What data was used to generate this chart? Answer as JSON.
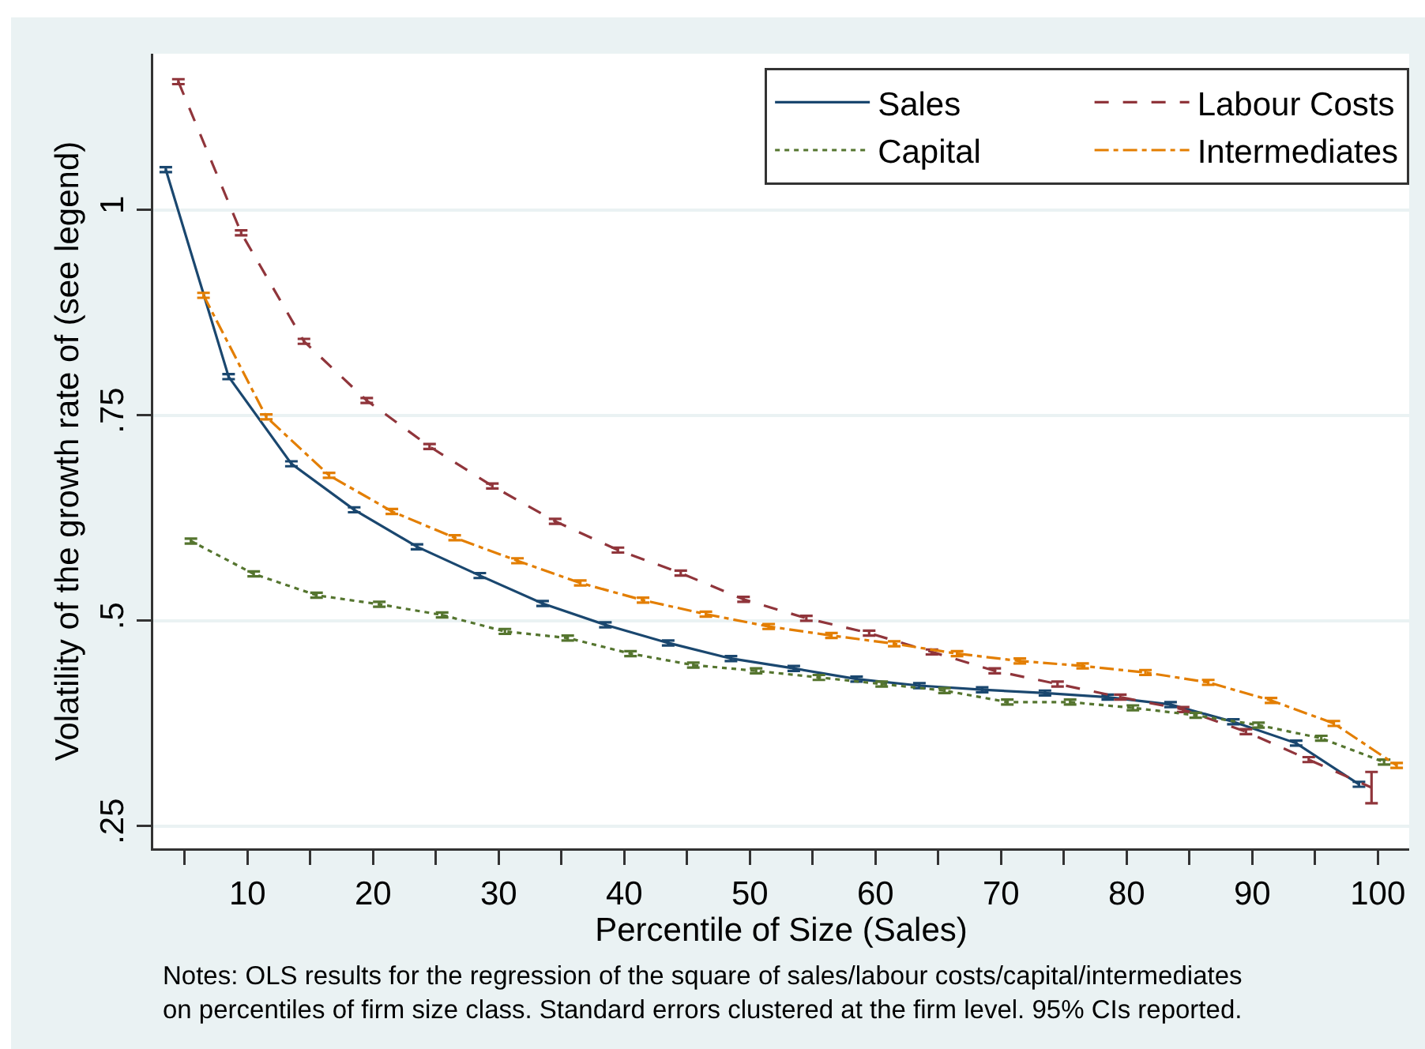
{
  "chart_data": {
    "type": "line",
    "xlabel": "Percentile of Size (Sales)",
    "ylabel": "Volatility of the growth rate of (see legend)",
    "annotations": [
      "Notes: OLS results for the regression of the square of sales/labour costs/capital/intermediates\non percentiles of firm size class. Standard errors clustered at the firm level. 95% CIs reported."
    ],
    "xlim": [
      2.5,
      102.5
    ],
    "ylim": [
      0.223,
      1.19
    ],
    "xticks": [
      {
        "value": 5,
        "label": null
      },
      10,
      {
        "value": 15,
        "label": null
      },
      20,
      {
        "value": 25,
        "label": null
      },
      30,
      {
        "value": 35,
        "label": null
      },
      40,
      {
        "value": 45,
        "label": null
      },
      50,
      {
        "value": 55,
        "label": null
      },
      60,
      {
        "value": 65,
        "label": null
      },
      70,
      {
        "value": 75,
        "label": null
      },
      80,
      {
        "value": 85,
        "label": null
      },
      90,
      {
        "value": 95,
        "label": null
      },
      100
    ],
    "yticks": [
      {
        "value": 0.25,
        "label": ".25"
      },
      {
        "value": 0.5,
        "label": ".5"
      },
      {
        "value": 0.75,
        "label": ".75"
      },
      1
    ],
    "grid": "y",
    "legend": "top right",
    "marker": "none",
    "series": [
      {
        "name": "Sales",
        "color": "#1a476f",
        "line_style": "solid",
        "x": [
          3.5,
          8.5,
          13.5,
          18.5,
          23.5,
          28.5,
          33.5,
          38.5,
          43.5,
          48.5,
          53.5,
          58.5,
          63.5,
          68.5,
          73.5,
          78.5,
          83.5,
          88.5,
          93.5,
          98.5
        ],
        "values": [
          1.049,
          0.797,
          0.691,
          0.635,
          0.59,
          0.555,
          0.521,
          0.495,
          0.473,
          0.454,
          0.442,
          0.429,
          0.421,
          0.416,
          0.412,
          0.407,
          0.398,
          0.377,
          0.351,
          0.301
        ],
        "errors": [
          0.003,
          0.003,
          0.003,
          0.003,
          0.003,
          0.003,
          0.003,
          0.003,
          0.003,
          0.003,
          0.003,
          0.003,
          0.003,
          0.003,
          0.003,
          0.003,
          0.003,
          0.003,
          0.003,
          0.003
        ]
      },
      {
        "name": "Labour Costs",
        "color": "#90353b",
        "line_style": "dashed",
        "x": [
          4.5,
          9.5,
          14.5,
          19.5,
          24.5,
          29.5,
          34.5,
          39.5,
          44.5,
          49.5,
          54.5,
          59.5,
          64.5,
          69.5,
          74.5,
          79.5,
          84.5,
          89.5,
          94.5,
          99.5
        ],
        "values": [
          1.156,
          0.972,
          0.84,
          0.768,
          0.712,
          0.664,
          0.621,
          0.586,
          0.558,
          0.526,
          0.503,
          0.485,
          0.462,
          0.439,
          0.423,
          0.407,
          0.392,
          0.365,
          0.331,
          0.297
        ],
        "errors": [
          0.003,
          0.003,
          0.003,
          0.003,
          0.003,
          0.003,
          0.003,
          0.003,
          0.003,
          0.003,
          0.003,
          0.003,
          0.003,
          0.003,
          0.003,
          0.003,
          0.003,
          0.003,
          0.003,
          0.019
        ]
      },
      {
        "name": "Capital",
        "color": "#55752f",
        "line_style": "dotted",
        "x": [
          5.5,
          10.5,
          15.5,
          20.5,
          25.5,
          30.5,
          35.5,
          40.5,
          45.5,
          50.5,
          55.5,
          60.5,
          65.5,
          70.5,
          75.5,
          80.5,
          85.5,
          90.5,
          95.5,
          100.5
        ],
        "values": [
          0.597,
          0.557,
          0.531,
          0.52,
          0.507,
          0.487,
          0.479,
          0.46,
          0.446,
          0.439,
          0.431,
          0.423,
          0.415,
          0.401,
          0.401,
          0.394,
          0.385,
          0.373,
          0.357,
          0.328
        ],
        "errors": [
          0.003,
          0.003,
          0.003,
          0.003,
          0.003,
          0.003,
          0.003,
          0.003,
          0.003,
          0.003,
          0.003,
          0.003,
          0.003,
          0.003,
          0.003,
          0.003,
          0.003,
          0.003,
          0.003,
          0.003
        ]
      },
      {
        "name": "Intermediates",
        "color": "#e37e00",
        "line_style": "dashdot",
        "x": [
          6.5,
          11.5,
          16.5,
          21.5,
          26.5,
          31.5,
          36.5,
          41.5,
          46.5,
          51.5,
          56.5,
          61.5,
          66.5,
          71.5,
          76.5,
          81.5,
          86.5,
          91.5,
          96.5,
          101.5
        ],
        "values": [
          0.896,
          0.748,
          0.677,
          0.633,
          0.601,
          0.573,
          0.546,
          0.525,
          0.508,
          0.493,
          0.482,
          0.472,
          0.46,
          0.451,
          0.445,
          0.437,
          0.425,
          0.403,
          0.375,
          0.324
        ],
        "errors": [
          0.003,
          0.003,
          0.003,
          0.003,
          0.003,
          0.003,
          0.003,
          0.003,
          0.003,
          0.003,
          0.003,
          0.003,
          0.003,
          0.003,
          0.003,
          0.003,
          0.003,
          0.003,
          0.003,
          0.003
        ]
      }
    ]
  }
}
